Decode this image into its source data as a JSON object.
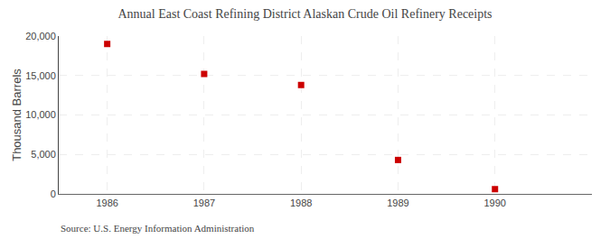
{
  "chart_data": {
    "type": "scatter",
    "title": "Annual East Coast Refining District Alaskan Crude Oil Refinery Receipts",
    "ylabel": "Thousand Barrels",
    "annotations": [
      "Source: U.S. Energy Information Administration"
    ],
    "x": [
      1986,
      1987,
      1988,
      1989,
      1990
    ],
    "values": [
      19000,
      15200,
      13800,
      4300,
      600
    ],
    "color": "#cc0000",
    "marker": "square",
    "xlim": [
      1985.5,
      1991.0
    ],
    "xticks": [
      1986,
      1987,
      1988,
      1989,
      1990
    ],
    "ylim": [
      0,
      20000
    ],
    "yticks": [
      0,
      {
        "value": 5000,
        "label": "5,000"
      },
      {
        "value": 10000,
        "label": "10,000"
      },
      {
        "value": 15000,
        "label": "15,000"
      },
      {
        "value": 20000,
        "label": "20,000"
      }
    ],
    "grid": true
  }
}
